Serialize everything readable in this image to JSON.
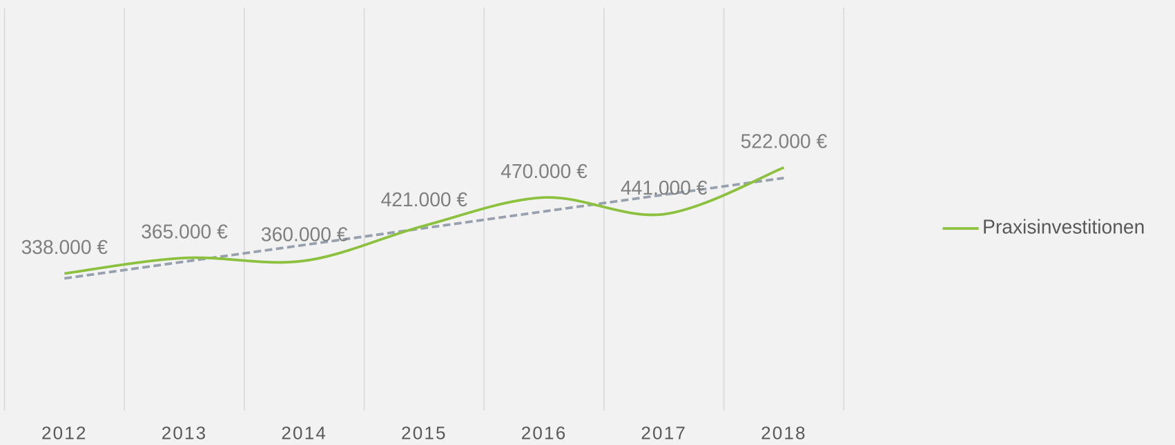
{
  "chart_data": {
    "type": "line",
    "categories": [
      "2012",
      "2013",
      "2014",
      "2015",
      "2016",
      "2017",
      "2018"
    ],
    "series": [
      {
        "name": "Praxisinvestitionen",
        "color": "#8cc13f",
        "values": [
          338000,
          365000,
          360000,
          421000,
          470000,
          441000,
          522000
        ],
        "value_labels": [
          "338.000 €",
          "365.000 €",
          "360.000 €",
          "421.000 €",
          "470.000 €",
          "441.000 €",
          "522.000 €"
        ]
      }
    ],
    "ylim": [
      100000,
      800000
    ],
    "trendline": {
      "type": "linear",
      "color": "#97a1ae"
    },
    "smooth": true,
    "legend": "right"
  }
}
